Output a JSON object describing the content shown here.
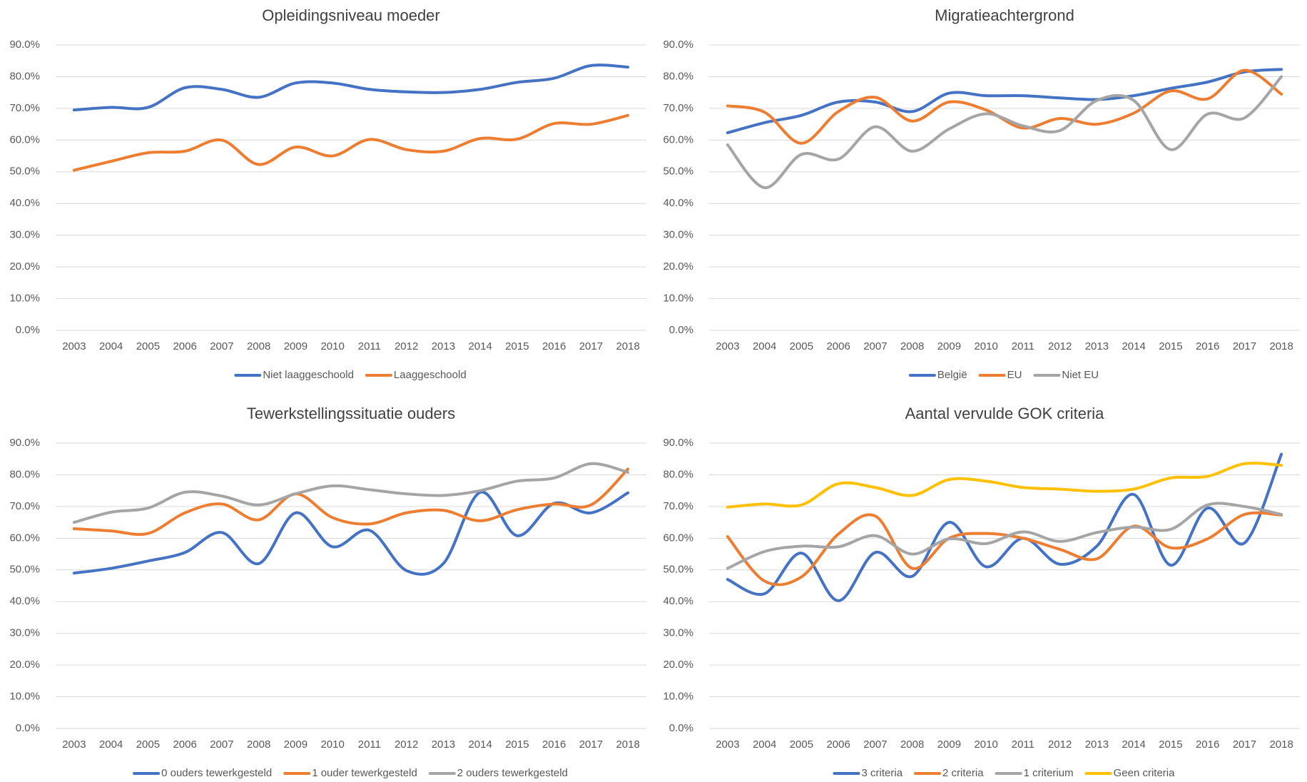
{
  "chart_data": [
    {
      "type": "line",
      "title": "Opleidingsniveau moeder",
      "categories": [
        "2003",
        "2004",
        "2005",
        "2006",
        "2007",
        "2008",
        "2009",
        "2010",
        "2011",
        "2012",
        "2013",
        "2014",
        "2015",
        "2016",
        "2017",
        "2018"
      ],
      "series": [
        {
          "name": "Niet laaggeschoold",
          "color": "#4472c4",
          "values": [
            69.5,
            70.3,
            70.3,
            76.5,
            76,
            73.5,
            78,
            78,
            76,
            75.2,
            75,
            76,
            78.2,
            79.5,
            83.5,
            83
          ]
        },
        {
          "name": "Laaggeschoold",
          "color": "#ed7d31",
          "values": [
            50.5,
            53.3,
            56,
            56.5,
            60,
            52.3,
            57.8,
            55,
            60.2,
            57,
            56.5,
            60.5,
            60.3,
            65.2,
            65,
            67.8
          ]
        }
      ],
      "ylim": [
        0,
        90
      ],
      "yticks": [
        {
          "value": 0,
          "label": "0.0%"
        },
        {
          "value": 10,
          "label": "10.0%"
        },
        {
          "value": 20,
          "label": "20.0%"
        },
        {
          "value": 30,
          "label": "30.0%"
        },
        {
          "value": 40,
          "label": "40.0%"
        },
        {
          "value": 50,
          "label": "50.0%"
        },
        {
          "value": 60,
          "label": "60.0%"
        },
        {
          "value": 70,
          "label": "70.0%"
        },
        {
          "value": 80,
          "label": "80.0%"
        },
        {
          "value": 90,
          "label": "90.0%"
        }
      ],
      "grid": true,
      "legend": "bottom"
    },
    {
      "type": "line",
      "title": "Migratieachtergrond",
      "categories": [
        "2003",
        "2004",
        "2005",
        "2006",
        "2007",
        "2008",
        "2009",
        "2010",
        "2011",
        "2012",
        "2013",
        "2014",
        "2015",
        "2016",
        "2017",
        "2018"
      ],
      "series": [
        {
          "name": "België",
          "color": "#4472c4",
          "values": [
            62.3,
            65.5,
            67.8,
            72,
            72,
            69,
            74.8,
            74,
            74,
            73.3,
            72.8,
            74,
            76.3,
            78.3,
            81.5,
            82.3
          ]
        },
        {
          "name": "EU",
          "color": "#ed7d31",
          "values": [
            70.8,
            68.8,
            59,
            69,
            73.5,
            66,
            72,
            69.5,
            63.8,
            66.8,
            65,
            68.5,
            75.5,
            73,
            82,
            74.5
          ]
        },
        {
          "name": "Niet EU",
          "color": "#a5a5a5",
          "values": [
            58.5,
            45,
            55.5,
            54,
            64.2,
            56.5,
            63.5,
            68.3,
            64.5,
            63,
            72.5,
            72.5,
            57,
            68.2,
            67,
            80
          ]
        }
      ],
      "ylim": [
        0,
        90
      ],
      "yticks": [
        {
          "value": 0,
          "label": "0.0%"
        },
        {
          "value": 10,
          "label": "10.0%"
        },
        {
          "value": 20,
          "label": "20.0%"
        },
        {
          "value": 30,
          "label": "30.0%"
        },
        {
          "value": 40,
          "label": "40.0%"
        },
        {
          "value": 50,
          "label": "50.0%"
        },
        {
          "value": 60,
          "label": "60.0%"
        },
        {
          "value": 70,
          "label": "70.0%"
        },
        {
          "value": 80,
          "label": "80.0%"
        },
        {
          "value": 90,
          "label": "90.0%"
        }
      ],
      "grid": true,
      "legend": "bottom"
    },
    {
      "type": "line",
      "title": "Tewerkstellingssituatie ouders",
      "categories": [
        "2003",
        "2004",
        "2005",
        "2006",
        "2007",
        "2008",
        "2009",
        "2010",
        "2011",
        "2012",
        "2013",
        "2014",
        "2015",
        "2016",
        "2017",
        "2018"
      ],
      "series": [
        {
          "name": "0 ouders tewerkgesteld",
          "color": "#4472c4",
          "values": [
            49,
            50.5,
            52.8,
            55.5,
            61.8,
            52,
            68,
            57.3,
            62.5,
            49.8,
            52,
            74.5,
            60.8,
            71,
            68,
            74.3
          ]
        },
        {
          "name": "1 ouder tewerkgesteld",
          "color": "#ed7d31",
          "values": [
            63,
            62.3,
            61.5,
            68,
            70.8,
            65.8,
            74,
            66.5,
            64.5,
            68,
            68.8,
            65.5,
            69,
            70.8,
            70.5,
            81.8
          ]
        },
        {
          "name": "2 ouders tewerkgesteld",
          "color": "#a5a5a5",
          "values": [
            65,
            68.2,
            69.5,
            74.5,
            73.3,
            70.5,
            74,
            76.5,
            75.3,
            74,
            73.5,
            75,
            78,
            79,
            83.5,
            80.8
          ]
        }
      ],
      "ylim": [
        0,
        90
      ],
      "yticks": [
        {
          "value": 0,
          "label": "0.0%"
        },
        {
          "value": 10,
          "label": "10.0%"
        },
        {
          "value": 20,
          "label": "20.0%"
        },
        {
          "value": 30,
          "label": "30.0%"
        },
        {
          "value": 40,
          "label": "40.0%"
        },
        {
          "value": 50,
          "label": "50.0%"
        },
        {
          "value": 60,
          "label": "60.0%"
        },
        {
          "value": 70,
          "label": "70.0%"
        },
        {
          "value": 80,
          "label": "80.0%"
        },
        {
          "value": 90,
          "label": "90.0%"
        }
      ],
      "grid": true,
      "legend": "bottom"
    },
    {
      "type": "line",
      "title": "Aantal vervulde GOK criteria",
      "categories": [
        "2003",
        "2004",
        "2005",
        "2006",
        "2007",
        "2008",
        "2009",
        "2010",
        "2011",
        "2012",
        "2013",
        "2014",
        "2015",
        "2016",
        "2017",
        "2018"
      ],
      "series": [
        {
          "name": "3 criteria",
          "color": "#4472c4",
          "values": [
            47,
            42.5,
            55.3,
            40.3,
            55.5,
            48,
            65,
            51,
            60,
            51.8,
            57.5,
            73.8,
            51.5,
            69.5,
            58.5,
            86.5
          ]
        },
        {
          "name": "2 criteria",
          "color": "#ed7d31",
          "values": [
            60.5,
            46.5,
            47.8,
            61.3,
            67,
            50.5,
            60,
            61.5,
            60,
            56.5,
            53.5,
            63.8,
            57,
            59.8,
            67.5,
            67.3
          ]
        },
        {
          "name": "1 criterium",
          "color": "#a5a5a5",
          "values": [
            50.5,
            55.8,
            57.5,
            57.3,
            60.8,
            55,
            59.8,
            58.3,
            62,
            59,
            61.8,
            63.5,
            62.8,
            70.5,
            70,
            67.5
          ]
        },
        {
          "name": "Geen criteria",
          "color": "#ffc000",
          "values": [
            69.8,
            70.8,
            70.5,
            77.2,
            76,
            73.5,
            78.5,
            78,
            76,
            75.5,
            74.8,
            75.5,
            79,
            79.5,
            83.5,
            83
          ]
        }
      ],
      "ylim": [
        0,
        90
      ],
      "yticks": [
        {
          "value": 0,
          "label": "0.0%"
        },
        {
          "value": 10,
          "label": "10.0%"
        },
        {
          "value": 20,
          "label": "20.0%"
        },
        {
          "value": 30,
          "label": "30.0%"
        },
        {
          "value": 40,
          "label": "40.0%"
        },
        {
          "value": 50,
          "label": "50.0%"
        },
        {
          "value": 60,
          "label": "60.0%"
        },
        {
          "value": 70,
          "label": "70.0%"
        },
        {
          "value": 80,
          "label": "80.0%"
        },
        {
          "value": 90,
          "label": "90.0%"
        }
      ],
      "grid": true,
      "legend": "bottom"
    }
  ]
}
